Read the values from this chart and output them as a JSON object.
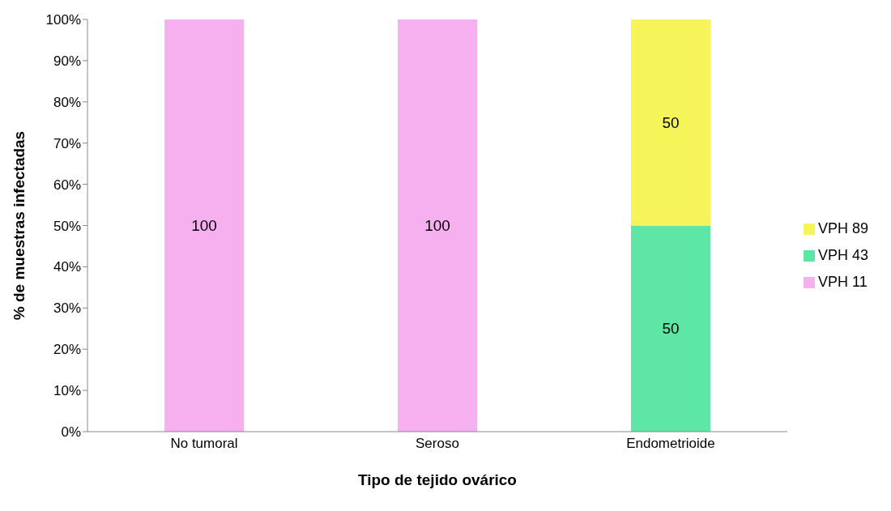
{
  "chart_data": {
    "type": "bar",
    "stacked": true,
    "xlabel": "Tipo de tejido ovárico",
    "ylabel": "% de muestras infectadas",
    "categories": [
      "No tumoral",
      "Seroso",
      "Endometrioide"
    ],
    "series": [
      {
        "name": "VPH 11",
        "color": "#f7b0ef",
        "values": [
          100,
          100,
          null
        ]
      },
      {
        "name": "VPH 43",
        "color": "#5ee6a6",
        "values": [
          null,
          null,
          50
        ]
      },
      {
        "name": "VPH 89",
        "color": "#f5f55a",
        "values": [
          null,
          null,
          50
        ]
      }
    ],
    "ylim": [
      0,
      100
    ],
    "yticks": [
      {
        "value": 0,
        "label": "0%"
      },
      {
        "value": 10,
        "label": "10%"
      },
      {
        "value": 20,
        "label": "20%"
      },
      {
        "value": 30,
        "label": "30%"
      },
      {
        "value": 40,
        "label": "40%"
      },
      {
        "value": 50,
        "label": "50%"
      },
      {
        "value": 60,
        "label": "60%"
      },
      {
        "value": 70,
        "label": "70%"
      },
      {
        "value": 80,
        "label": "80%"
      },
      {
        "value": 90,
        "label": "90%"
      },
      {
        "value": 100,
        "label": "100%"
      }
    ],
    "data_labels": true,
    "legend": "right",
    "grid": false
  }
}
